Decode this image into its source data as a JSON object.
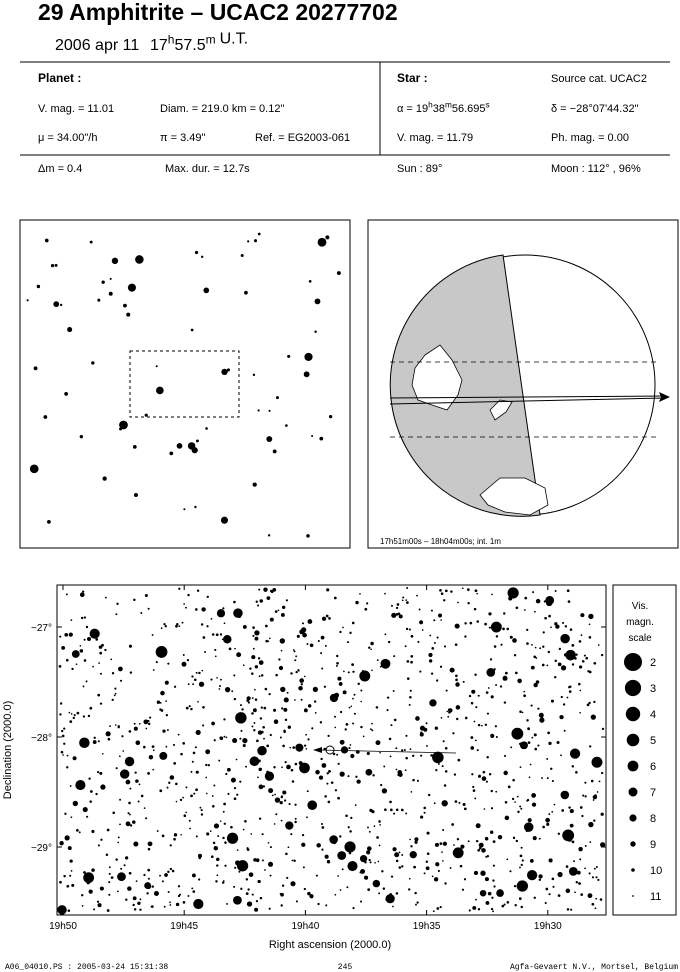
{
  "header": {
    "title": "29 Amphitrite  –  UCAC2 20277702",
    "date": "2006 apr 11",
    "time": {
      "hours": "17",
      "h": "h",
      "minutes": "57.5",
      "m": "m",
      "suffix": "U.T."
    }
  },
  "planet": {
    "heading": "Planet :",
    "vmag": "V. mag. = 11.01",
    "diam": "Diam. = 219.0 km = 0.12\"",
    "mu": "μ = 34.00\"/h",
    "pi": "π =  3.49\"",
    "ref": "Ref. = EG2003-061"
  },
  "star": {
    "heading": "Star :",
    "source": "Source cat.  UCAC2",
    "alpha": {
      "prefix": "α = 19",
      "h": "h",
      "minutes": "38",
      "m": "m",
      "seconds": "56.695",
      "s": "s"
    },
    "delta": "δ = −28°07'44.32\"",
    "vmag": "V. mag. = 11.79",
    "phmag": "Ph. mag. =  0.00"
  },
  "summary": {
    "dm": "Δm = 0.4",
    "maxdur": "Max. dur. = 12.7s",
    "sun": "Sun :  89°",
    "moon": "Moon : 112° , 96%"
  },
  "globe": {
    "caption": "17h51m00s – 18h04m00s; int.  1m"
  },
  "chart": {
    "xlabel": "Right ascension (2000.0)",
    "ylabel": "Declination (2000.0)",
    "xticks": [
      "19h50",
      "19h45",
      "19h40",
      "19h35",
      "19h30"
    ],
    "yticks": [
      "−27°",
      "−28°",
      "−29°"
    ],
    "legend": {
      "title": [
        "Vis.",
        "magn.",
        "scale"
      ],
      "magnitudes": [
        2,
        3,
        4,
        5,
        6,
        7,
        8,
        9,
        10,
        11
      ]
    }
  },
  "footer": {
    "left": "A06_04010.PS : 2005-03-24 15:31:38",
    "center": "245",
    "right": "Agfa-Gevaert N.V., Mortsel, Belgium"
  }
}
